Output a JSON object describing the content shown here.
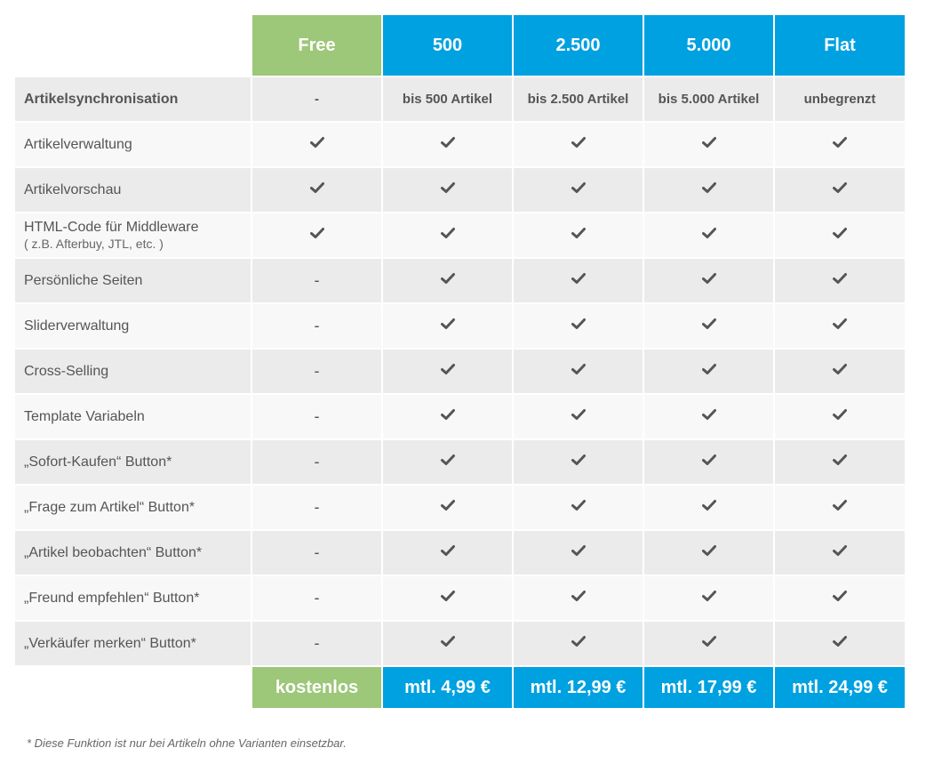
{
  "plans": [
    "Free",
    "500",
    "2.500",
    "5.000",
    "Flat"
  ],
  "colors": {
    "free": "#9dc779",
    "paid": "#00a1e0",
    "check": "#555555"
  },
  "sync_row": {
    "label": "Artikelsynchronisation",
    "values": [
      "-",
      "bis 500 Artikel",
      "bis 2.500 Artikel",
      "bis 5.000 Artikel",
      "unbegrenzt"
    ]
  },
  "features": [
    {
      "label": "Artikelverwaltung",
      "sub": "",
      "free": "check-icon"
    },
    {
      "label": "Artikelvorschau",
      "sub": "",
      "free": "check-icon"
    },
    {
      "label": "HTML-Code für Middleware",
      "sub": "( z.B. Afterbuy, JTL, etc. )",
      "free": "check-icon"
    },
    {
      "label": "Persönliche Seiten",
      "sub": "",
      "free": "-"
    },
    {
      "label": "Sliderverwaltung",
      "sub": "",
      "free": "-"
    },
    {
      "label": "Cross-Selling",
      "sub": "",
      "free": "-"
    },
    {
      "label": "Template Variabeln",
      "sub": "",
      "free": "-"
    },
    {
      "label": "„Sofort-Kaufen“ Button*",
      "sub": "",
      "free": "-"
    },
    {
      "label": "„Frage zum Artikel“ Button*",
      "sub": "",
      "free": "-"
    },
    {
      "label": "„Artikel beobachten“ Button*",
      "sub": "",
      "free": "-"
    },
    {
      "label": "„Freund empfehlen“ Button*",
      "sub": "",
      "free": "-"
    },
    {
      "label": "„Verkäufer merken“ Button*",
      "sub": "",
      "free": "-"
    }
  ],
  "prices": [
    "kostenlos",
    "mtl. 4,99 €",
    "mtl. 12,99 €",
    "mtl. 17,99 €",
    "mtl. 24,99 €"
  ],
  "footnote": "* Diese Funktion ist nur bei Artikeln ohne Varianten einsetzbar."
}
